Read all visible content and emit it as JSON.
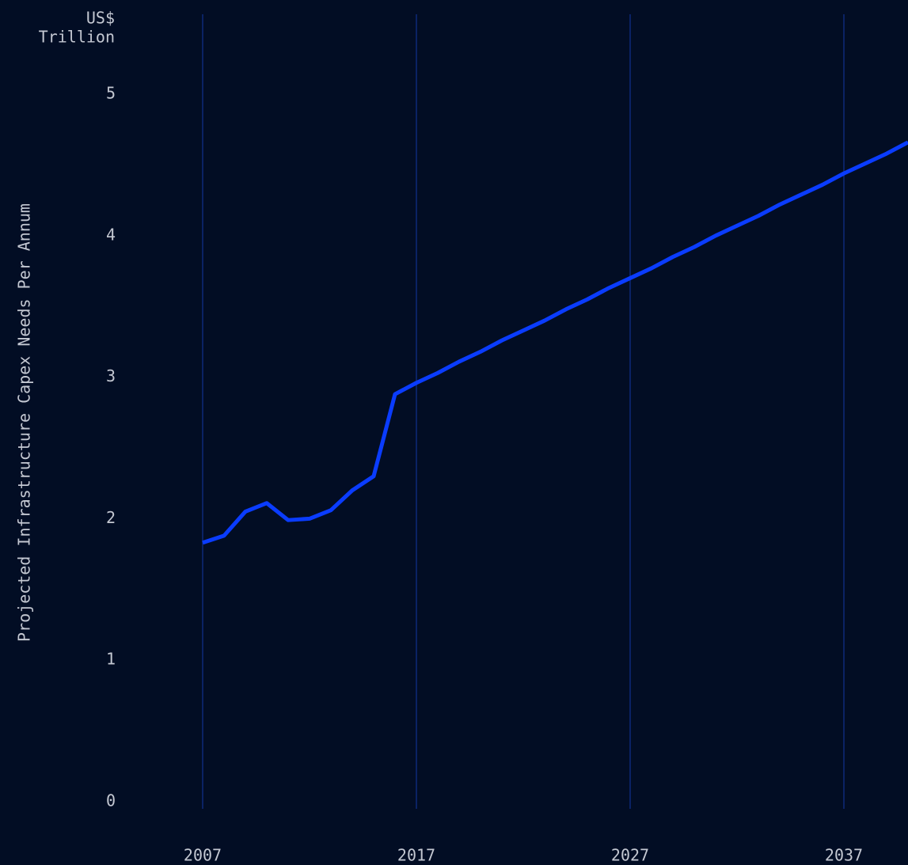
{
  "chart_data": {
    "type": "line",
    "y_label": "Projected Infrastructure Capex Needs Per Annum",
    "y_unit": [
      "US$",
      "Trillion"
    ],
    "x": [
      2007,
      2008,
      2009,
      2010,
      2011,
      2012,
      2013,
      2014,
      2015,
      2016,
      2017,
      2018,
      2019,
      2020,
      2021,
      2022,
      2023,
      2024,
      2025,
      2026,
      2027,
      2028,
      2029,
      2030,
      2031,
      2032,
      2033,
      2034,
      2035,
      2036,
      2037,
      2038,
      2039,
      2040
    ],
    "series": [
      {
        "name": "Projected Infrastructure Capex Needs",
        "color": "#0a3cff",
        "values": [
          1.83,
          1.88,
          2.05,
          2.11,
          1.99,
          2.0,
          2.06,
          2.2,
          2.3,
          2.88,
          2.96,
          3.03,
          3.11,
          3.18,
          3.26,
          3.33,
          3.4,
          3.48,
          3.55,
          3.63,
          3.7,
          3.77,
          3.85,
          3.92,
          4.0,
          4.07,
          4.14,
          4.22,
          4.29,
          4.36,
          4.44,
          4.51,
          4.58,
          4.66
        ]
      }
    ],
    "xlim": [
      2007,
      2040
    ],
    "xticks": [
      2007,
      2017,
      2027,
      2037
    ],
    "ylim": [
      0,
      5
    ],
    "yticks": [
      0,
      1,
      2,
      3,
      4,
      5
    ],
    "grid": "x",
    "grid_color": "#0d2a7a",
    "background": "#020d24"
  }
}
